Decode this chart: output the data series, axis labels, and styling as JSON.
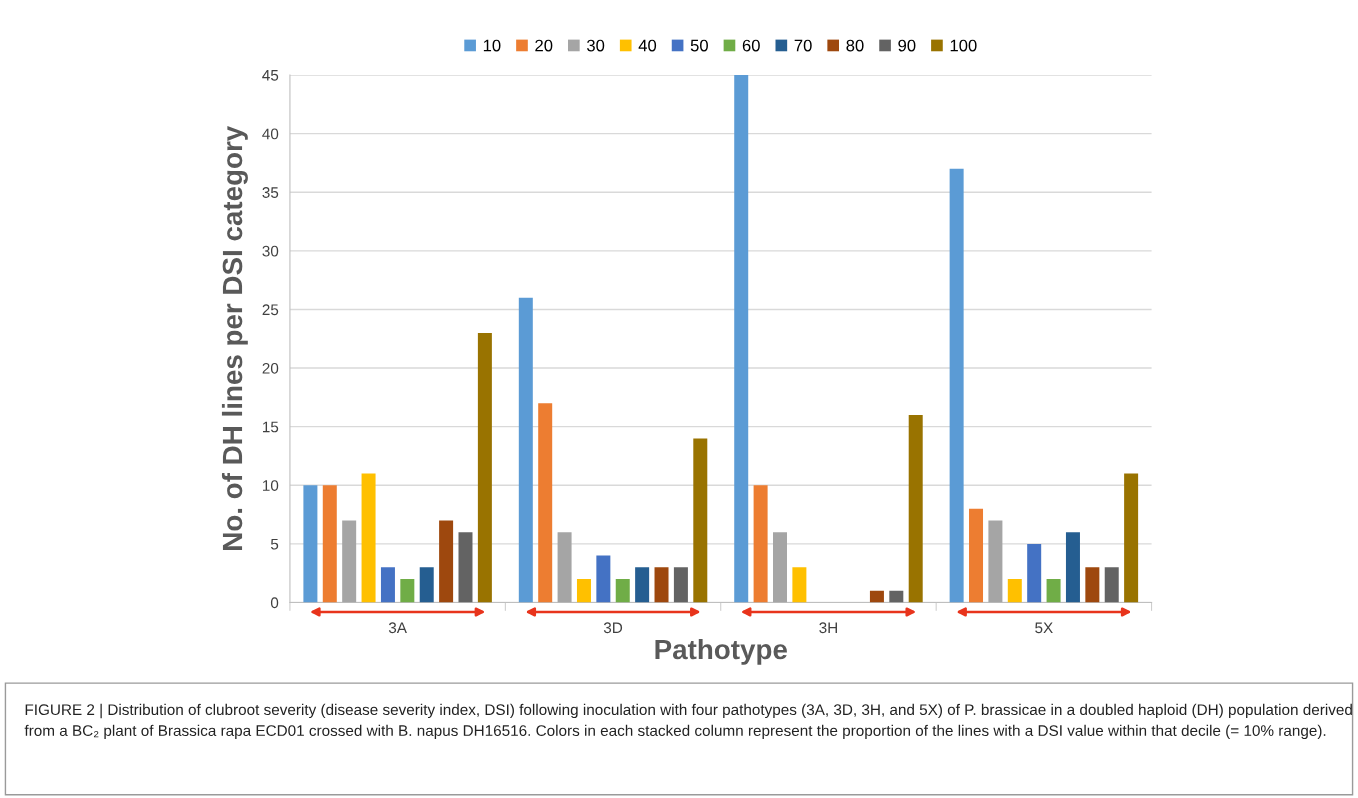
{
  "chart_data": {
    "type": "bar",
    "xlabel": "Pathotype",
    "ylabel": "No. of DH lines per DSI category",
    "categories": [
      "3A",
      "3D",
      "3H",
      "5X"
    ],
    "series": [
      {
        "name": "10",
        "color": "#5b9bd5",
        "values": [
          10,
          26,
          45,
          37
        ]
      },
      {
        "name": "20",
        "color": "#ed7d31",
        "values": [
          10,
          17,
          10,
          8
        ]
      },
      {
        "name": "30",
        "color": "#a5a5a5",
        "values": [
          7,
          6,
          6,
          7
        ]
      },
      {
        "name": "40",
        "color": "#ffc000",
        "values": [
          11,
          2,
          3,
          2
        ]
      },
      {
        "name": "50",
        "color": "#4472c4",
        "values": [
          3,
          4,
          0,
          5
        ]
      },
      {
        "name": "60",
        "color": "#70ad47",
        "values": [
          2,
          2,
          0,
          2
        ]
      },
      {
        "name": "70",
        "color": "#255e91",
        "values": [
          3,
          3,
          0,
          6
        ]
      },
      {
        "name": "80",
        "color": "#9e480e",
        "values": [
          7,
          3,
          1,
          3
        ]
      },
      {
        "name": "90",
        "color": "#636363",
        "values": [
          6,
          3,
          1,
          3
        ]
      },
      {
        "name": "100",
        "color": "#997300",
        "values": [
          23,
          14,
          16,
          11
        ]
      }
    ],
    "ylim": [
      0,
      45
    ],
    "yticks": [
      0,
      5,
      10,
      15,
      20,
      25,
      30,
      35,
      40,
      45
    ],
    "grid": "y",
    "legend": "top",
    "annotations": [
      "FIGURE 2 | Distribution of clubroot severity (disease severity index, DSI) following inoculation with four pathotypes (3A, 3D, 3H, and 5X) of P. brassicae in a doubled haploid (DH) population derived from a BC₂ plant of Brassica rapa ECD01 crossed with B. napus DH16516. Colors in each stacked column represent the proportion of the lines with a DSI value within that decile (= 10% range)."
    ]
  }
}
